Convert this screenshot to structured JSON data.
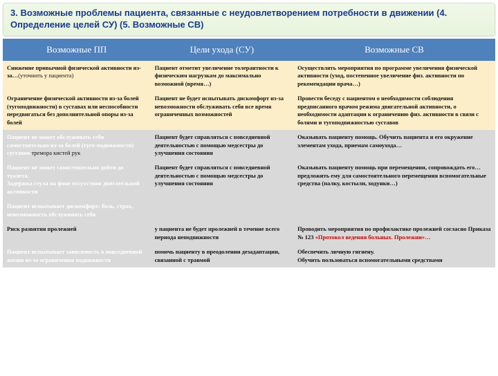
{
  "title": "3. Возможные проблемы пациента, связанные с неудовлетворением потребности в движении    (4. Определение целей СУ) (5. Возможные СВ)",
  "headers": {
    "c1": "Возможные  ПП",
    "c2": "Цели  ухода  (СУ)",
    "c3": "Возможные  СВ"
  },
  "rows": [
    {
      "cls": "yellow",
      "pp": "Снижение привычной физической активности из-за…",
      "pp_suffix": "(уточнить у пациента)",
      "su": "Пациент отметит увеличение толерантности к физическим нагрузкам до максимально возможной (время…)",
      "sv": "Осуществлять мероприятия по программе увеличения физической активности (уход, постепенное увеличение физ. активности по рекомендации врача…)"
    },
    {
      "cls": "yellow",
      "pp": "Ограничение физической активности из-за болей (тугоподвижности) в суставах или неспособности передвигаться без дополнительной опоры из-за болей",
      "su": "Пациент не будет испытывать дискомфорт из-за невозможности обслуживать себя все время ограниченных возможностей",
      "sv": "Провести беседу с пациентом о необходимости соблюдения предписанного врачом режима двигательной активности, о необходимости адаптации к ограничению физ. активности в связи с болями и тугоподвижностью суставов"
    },
    {
      "cls": "gray",
      "pp_white": "Пациент не может обслуживать себя самостоятельно из-за болей (туго-подвижности) суставов/",
      "pp_suffix": "тремора кистей рук",
      "su": "Пациент будет справляться с повседневной деятельностью с помощью медсестры до улучшения состояния",
      "sv": "Оказывать пациенту помощь. Обучить пациента и его окружение элементам ухода, приемам самоухода…"
    },
    {
      "cls": "gray",
      "pp_white": "Пациент не может самостоятельно дойти до туалета.\nЗадержка стула на фоне отсутствия двигательной активности",
      "su": "Пациент будет справляться с повседневной деятельностью с помощью медсестры до улучшения состояния",
      "sv": "Оказывать пациенту помощь при перемещении, сопровождать его… предложить ему для самостоятельного перемещения вспомогательные средства (палку, костыли, ходунки…)"
    },
    {
      "cls": "gray",
      "pp_white": "Пациент испытывает дискомфорт: боль, страх, невозможность обслуживать себя",
      "su": "",
      "sv": ""
    },
    {
      "cls": "gray",
      "pp": "Риск развития пролежней",
      "pp_black": true,
      "su": "у пациента не будет пролежней в течение всего периода неподвижности",
      "sv_pre": "Проводить мероприятия по профилактике пролежней согласно Приказа № 123 ",
      "sv_red": "«Протокол ведения больных. Пролежни»…"
    },
    {
      "cls": "gray",
      "pp_white": "Пациент испытывает зависимость в повседневной жизни из-за ограничения подвижности",
      "su": "помочь пациенту в преодолении дезадаптации, связанной с травмой",
      "sv": "Обеспечить личную гигиену.\nОбучить пользоваться вспомогательными средствами"
    }
  ]
}
